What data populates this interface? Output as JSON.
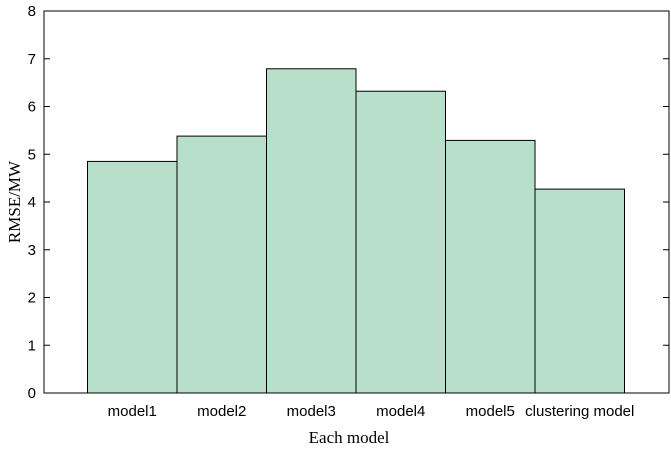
{
  "chart_data": {
    "type": "bar",
    "categories": [
      "model1",
      "model2",
      "model3",
      "model4",
      "model5",
      "clustering model"
    ],
    "values": [
      4.85,
      5.38,
      6.79,
      6.32,
      5.29,
      4.27
    ],
    "title": "",
    "xlabel": "Each model",
    "ylabel": "RMSE/MW",
    "ylim": [
      0,
      8
    ],
    "yticks": [
      "0",
      "1",
      "2",
      "3",
      "4",
      "5",
      "6",
      "7",
      "8"
    ],
    "grid": false,
    "legend": "none",
    "bar_color": "#b8dfc9",
    "bar_edge_color": "#000000"
  }
}
